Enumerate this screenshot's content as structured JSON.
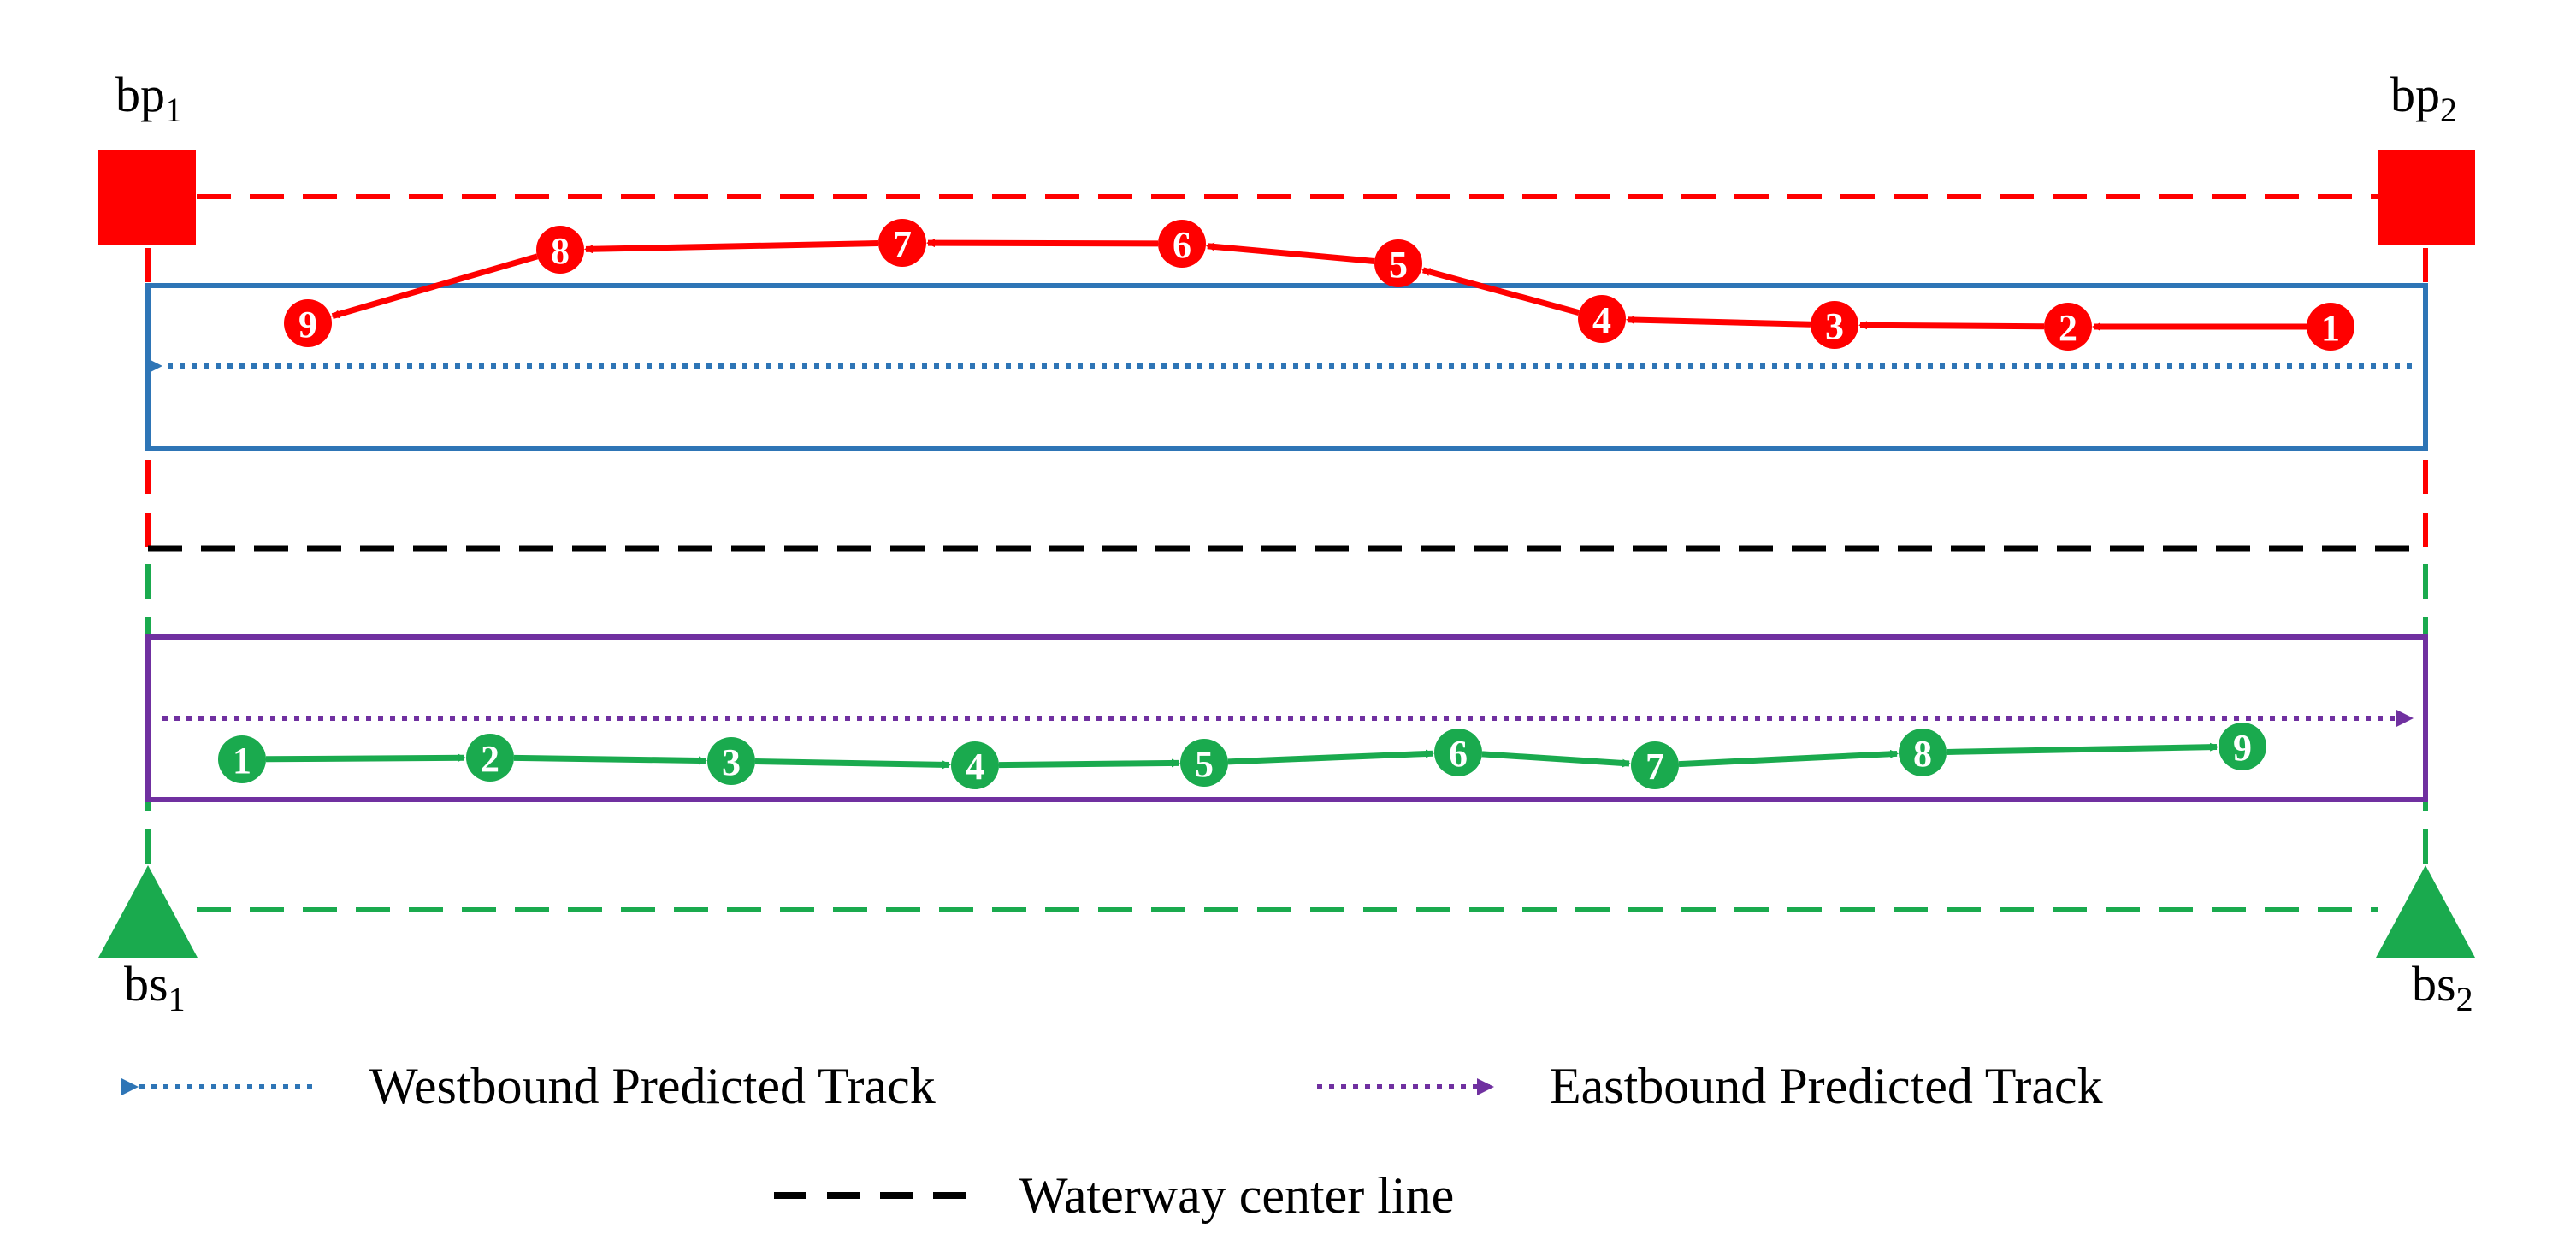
{
  "markers": {
    "bp1": {
      "base": "bp",
      "sub": "1"
    },
    "bp2": {
      "base": "bp",
      "sub": "2"
    },
    "bs1": {
      "base": "bs",
      "sub": "1"
    },
    "bs2": {
      "base": "bs",
      "sub": "2"
    }
  },
  "westbound_track": {
    "color": "#ff0000",
    "direction": "west",
    "labels": [
      "1",
      "2",
      "3",
      "4",
      "5",
      "6",
      "7",
      "8",
      "9"
    ]
  },
  "eastbound_track": {
    "color": "#1aaa4e",
    "direction": "east",
    "labels": [
      "1",
      "2",
      "3",
      "4",
      "5",
      "6",
      "7",
      "8",
      "9"
    ]
  },
  "legend": {
    "westbound_label": "Westbound Predicted Track",
    "eastbound_label": "Eastbound Predicted Track",
    "centerline_label": "Waterway center line"
  },
  "colors": {
    "base_station": "#1aaa4e",
    "breakpoint": "#ff0000",
    "westbound_predicted": "#2e75b6",
    "eastbound_predicted": "#7030a0",
    "centerline": "#000000"
  }
}
